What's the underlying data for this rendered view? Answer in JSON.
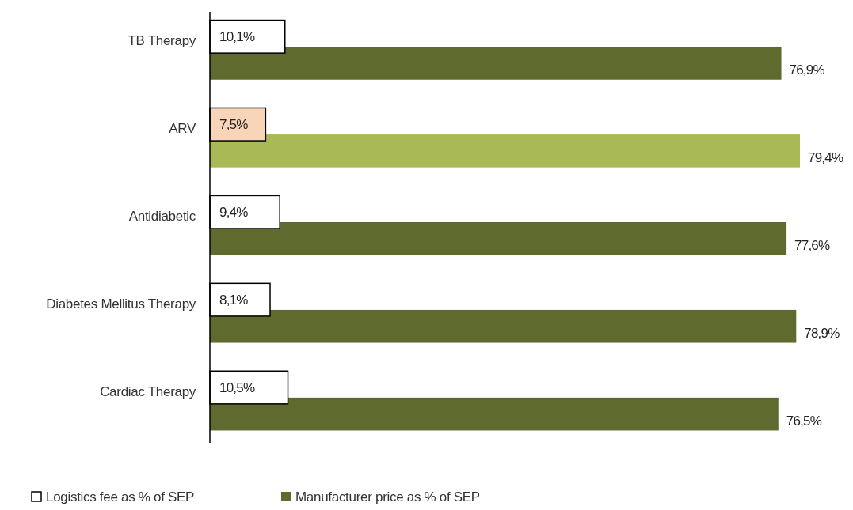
{
  "chart_data": {
    "type": "bar",
    "orientation": "horizontal",
    "categories": [
      "TB Therapy",
      "ARV",
      "Antidiabetic",
      "Diabetes Mellitus Therapy",
      "Cardiac Therapy"
    ],
    "series": [
      {
        "name": "Logistics fee as % of SEP",
        "color": "#ffffff",
        "colors": [
          "#ffffff",
          "#f8d4b8",
          "#ffffff",
          "#ffffff",
          "#ffffff"
        ],
        "values": [
          10.1,
          7.5,
          9.4,
          8.1,
          10.5
        ],
        "value_labels": [
          "10,1%",
          "7,5%",
          "9,4%",
          "8,1%",
          "10,5%"
        ]
      },
      {
        "name": "Manufacturer price as % of SEP",
        "color": "#5f6a2f",
        "colors": [
          "#5f6a2f",
          "#a8b955",
          "#5f6a2f",
          "#5f6a2f",
          "#5f6a2f"
        ],
        "values": [
          76.9,
          79.4,
          77.6,
          78.9,
          76.5
        ],
        "value_labels": [
          "76,9%",
          "79,4%",
          "77,6%",
          "78,9%",
          "76,5%"
        ]
      }
    ],
    "legend": "bottom"
  }
}
